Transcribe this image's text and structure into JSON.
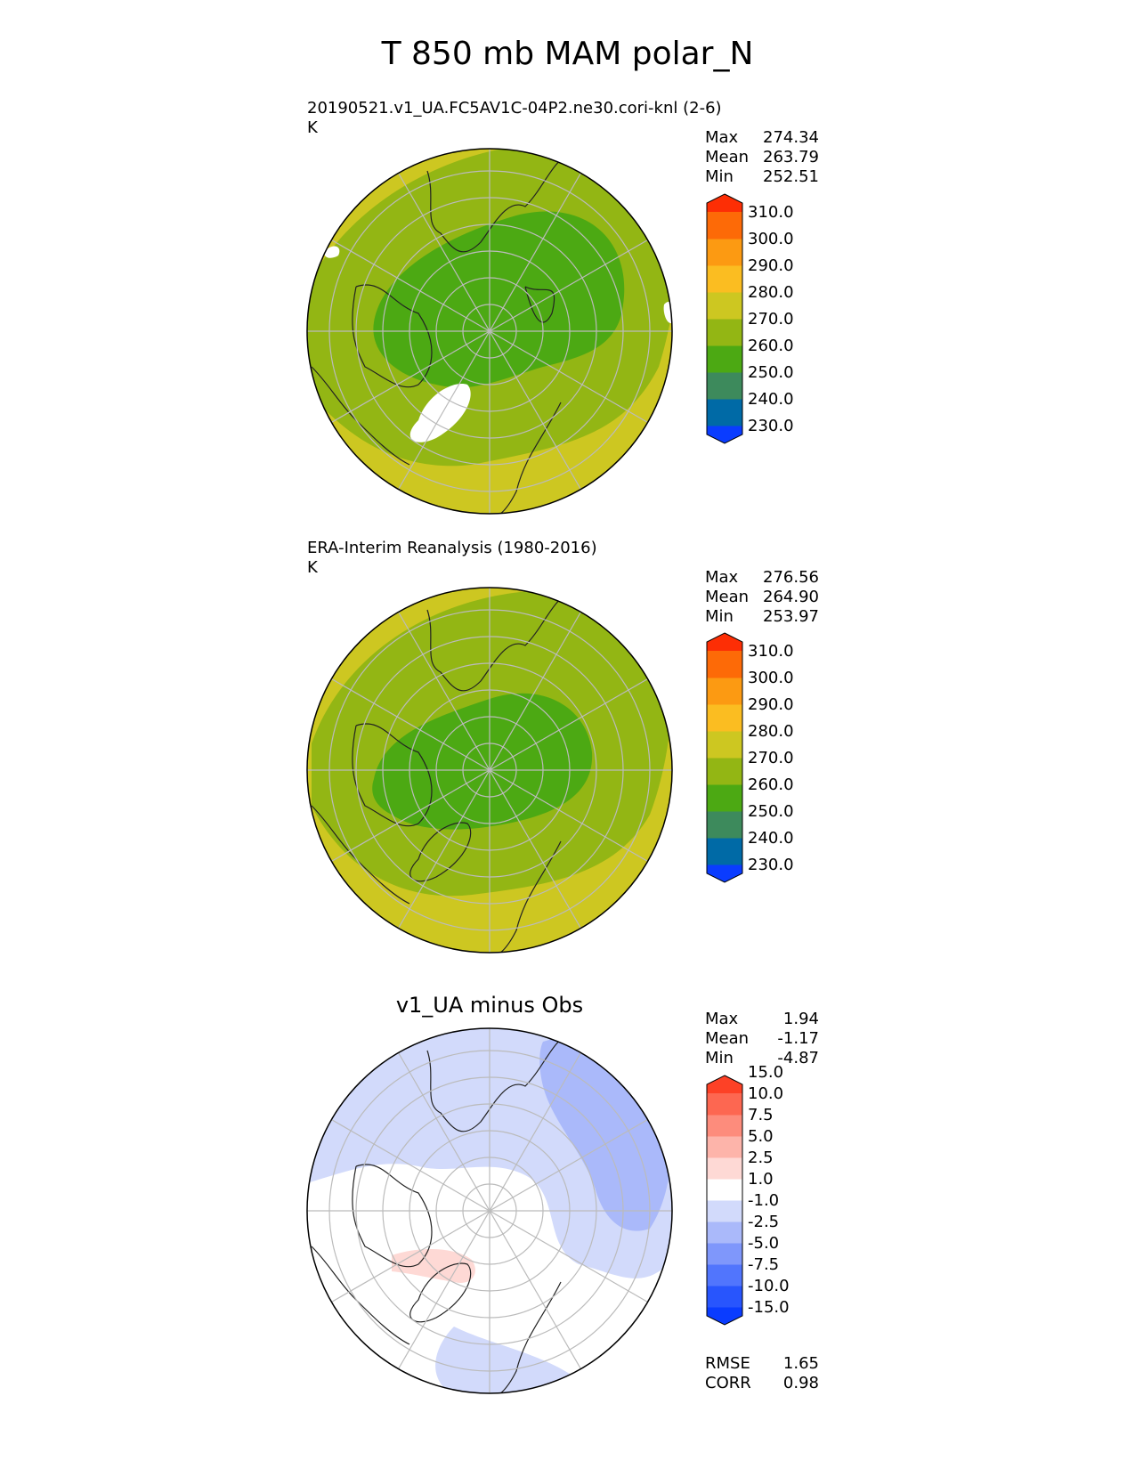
{
  "title": "T 850 mb MAM polar_N",
  "panels": [
    {
      "id": "test",
      "title_line1": "20190521.v1_UA.FC5AV1C-04P2.ne30.cori-knl (2-6)",
      "title_line2": "K",
      "stats": [
        {
          "label": "Max",
          "value": "274.34"
        },
        {
          "label": "Mean",
          "value": "263.79"
        },
        {
          "label": "Min",
          "value": "252.51"
        }
      ]
    },
    {
      "id": "ref",
      "title_line1": "ERA-Interim Reanalysis (1980-2016)",
      "title_line2": "K",
      "stats": [
        {
          "label": "Max",
          "value": "276.56"
        },
        {
          "label": "Mean",
          "value": "264.90"
        },
        {
          "label": "Min",
          "value": "253.97"
        }
      ]
    },
    {
      "id": "diff",
      "title_center": "v1_UA minus Obs",
      "stats": [
        {
          "label": "Max",
          "value": "1.94"
        },
        {
          "label": "Mean",
          "value": "-1.17"
        },
        {
          "label": "Min",
          "value": "-4.87"
        }
      ],
      "bottom_stats": [
        {
          "label": "RMSE",
          "value": "1.65"
        },
        {
          "label": "CORR",
          "value": "0.98"
        }
      ]
    }
  ],
  "colorbars": {
    "temperature": {
      "colors": [
        "#0a3cff",
        "#006aa6",
        "#3d8a5c",
        "#4ca913",
        "#93b614",
        "#cdc721",
        "#fbbd21",
        "#fc9a12",
        "#fd6a07",
        "#fd2e05"
      ],
      "tick_labels": [
        "230.0",
        "240.0",
        "250.0",
        "260.0",
        "270.0",
        "280.0",
        "290.0",
        "300.0",
        "310.0"
      ]
    },
    "difference": {
      "colors": [
        "#0a3cff",
        "#2855fd",
        "#5175fd",
        "#7f97fb",
        "#aab9fa",
        "#d2dafb",
        "#ffffff",
        "#fed9d5",
        "#fdb4aa",
        "#fd8c7c",
        "#fd6751",
        "#fd4126"
      ],
      "tick_labels": [
        "-15.0",
        "-10.0",
        "-7.5",
        "-5.0",
        "-2.5",
        "-1.0",
        "1.0",
        "2.5",
        "5.0",
        "7.5",
        "10.0",
        "15.0"
      ]
    }
  },
  "fill_colors": {
    "outer": "#cdc721",
    "middle": "#93b614",
    "inner": "#4ca913",
    "missing": "#ffffff",
    "diff_light_blue": "#d2dafb",
    "diff_mid_blue": "#aab9fa",
    "diff_pink": "#fed9d5"
  }
}
